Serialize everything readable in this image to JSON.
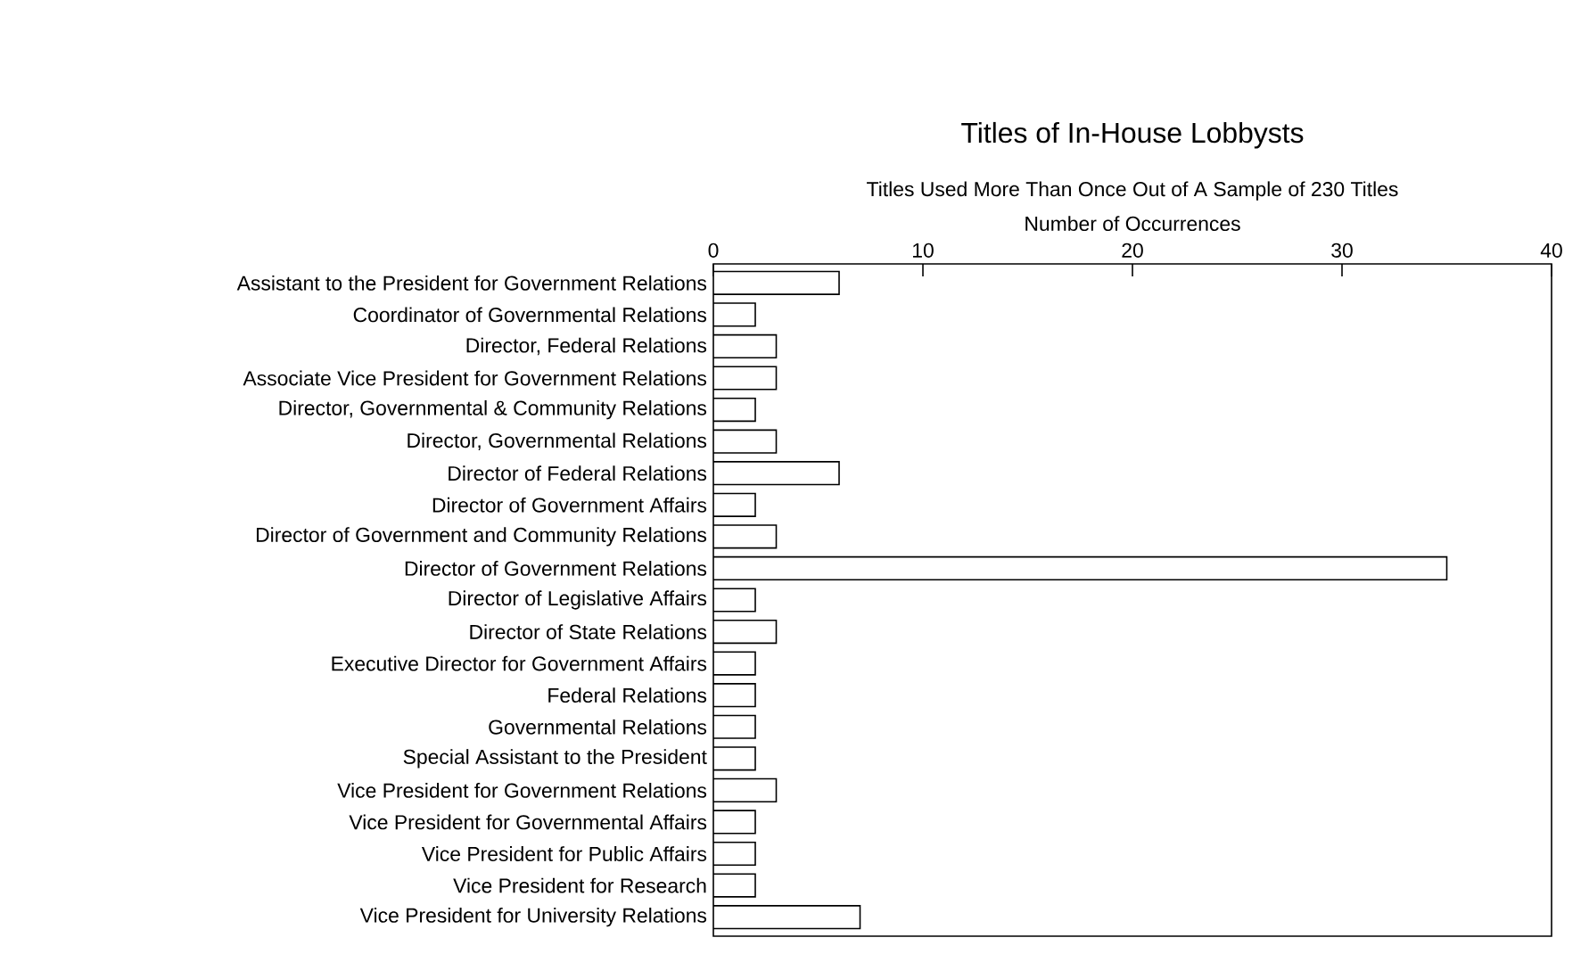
{
  "chart_data": {
    "type": "bar",
    "orientation": "horizontal",
    "title": "Titles of In-House Lobbysts",
    "subtitle": "Titles Used More Than Once Out of A Sample of 230 Titles",
    "xlabel": "Number of Occurrences",
    "categories": [
      "Assistant to the President for Government Relations",
      "Coordinator of Governmental Relations",
      "Director, Federal Relations",
      "Associate Vice President for Government Relations",
      "Director, Governmental & Community Relations",
      "Director, Governmental Relations",
      "Director of Federal Relations",
      "Director of Government Affairs",
      "Director of Government and Community Relations",
      "Director of Government Relations",
      "Director of Legislative Affairs",
      "Director of State Relations",
      "Executive Director for Government Affairs",
      "Federal Relations",
      "Governmental Relations",
      "Special Assistant to the President",
      "Vice President for Government Relations",
      "Vice President for Governmental Affairs",
      "Vice President for Public Affairs",
      "Vice President for Research",
      "Vice President for University Relations"
    ],
    "values": [
      6,
      2,
      3,
      3,
      2,
      3,
      6,
      2,
      3,
      35,
      2,
      3,
      2,
      2,
      2,
      2,
      3,
      2,
      2,
      2,
      7
    ],
    "color": "#ffffff",
    "xlim": [
      0,
      40
    ],
    "xticks": [
      0,
      10,
      20,
      30,
      40
    ]
  }
}
